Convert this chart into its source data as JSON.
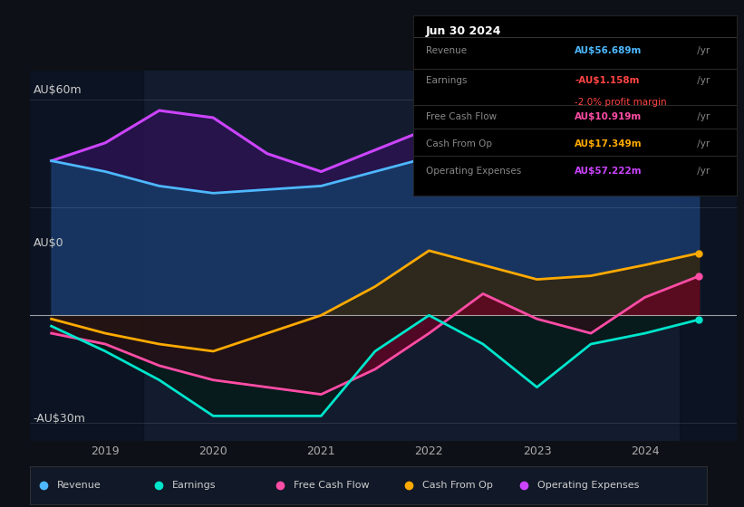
{
  "bg_color": "#0d1117",
  "plot_bg": "#131c2e",
  "ylim": [
    -35,
    68
  ],
  "xlim": [
    2018.3,
    2024.85
  ],
  "xticks": [
    2019,
    2020,
    2021,
    2022,
    2023,
    2024
  ],
  "series": {
    "Revenue": {
      "color": "#4db8ff",
      "fill_color": "#1a3a6b",
      "lw": 2.0,
      "x": [
        2018.5,
        2019.0,
        2019.5,
        2020.0,
        2020.5,
        2021.0,
        2021.5,
        2022.0,
        2022.5,
        2023.0,
        2023.5,
        2024.0,
        2024.5
      ],
      "y": [
        43,
        40,
        36,
        34,
        35,
        36,
        40,
        44,
        48,
        51,
        53,
        54,
        56.7
      ]
    },
    "Earnings": {
      "color": "#00e5cc",
      "lw": 2.0,
      "x": [
        2018.5,
        2019.0,
        2019.5,
        2020.0,
        2020.5,
        2021.0,
        2021.5,
        2022.0,
        2022.5,
        2023.0,
        2023.5,
        2024.0,
        2024.5
      ],
      "y": [
        -3,
        -10,
        -18,
        -28,
        -28,
        -28,
        -10,
        0,
        -8,
        -20,
        -8,
        -5,
        -1.2
      ]
    },
    "FreeCashFlow": {
      "color": "#ff4da6",
      "lw": 2.0,
      "x": [
        2018.5,
        2019.0,
        2019.5,
        2020.0,
        2020.5,
        2021.0,
        2021.5,
        2022.0,
        2022.5,
        2023.0,
        2023.5,
        2024.0,
        2024.5
      ],
      "y": [
        -5,
        -8,
        -14,
        -18,
        -20,
        -22,
        -15,
        -5,
        6,
        -1,
        -5,
        5,
        10.9
      ]
    },
    "CashFromOp": {
      "color": "#ffaa00",
      "lw": 2.0,
      "x": [
        2018.5,
        2019.0,
        2019.5,
        2020.0,
        2020.5,
        2021.0,
        2021.5,
        2022.0,
        2022.5,
        2023.0,
        2023.5,
        2024.0,
        2024.5
      ],
      "y": [
        -1,
        -5,
        -8,
        -10,
        -5,
        0,
        8,
        18,
        14,
        10,
        11,
        14,
        17.3
      ]
    },
    "OperatingExpenses": {
      "color": "#cc44ff",
      "lw": 2.2,
      "x": [
        2018.5,
        2019.0,
        2019.5,
        2020.0,
        2020.5,
        2021.0,
        2021.5,
        2022.0,
        2022.5,
        2023.0,
        2023.5,
        2024.0,
        2024.5
      ],
      "y": [
        43,
        48,
        57,
        55,
        45,
        40,
        46,
        52,
        57,
        62,
        56,
        54,
        57.2
      ]
    }
  },
  "info_box": {
    "date": "Jun 30 2024",
    "rows": [
      {
        "label": "Revenue",
        "value": "AU$56.689m",
        "value_color": "#4db8ff",
        "suffix": " /yr",
        "extra": null,
        "extra_color": null
      },
      {
        "label": "Earnings",
        "value": "-AU$1.158m",
        "value_color": "#ff4444",
        "suffix": " /yr",
        "extra": "-2.0% profit margin",
        "extra_color": "#ff4444"
      },
      {
        "label": "Free Cash Flow",
        "value": "AU$10.919m",
        "value_color": "#ff4da6",
        "suffix": " /yr",
        "extra": null,
        "extra_color": null
      },
      {
        "label": "Cash From Op",
        "value": "AU$17.349m",
        "value_color": "#ffaa00",
        "suffix": " /yr",
        "extra": null,
        "extra_color": null
      },
      {
        "label": "Operating Expenses",
        "value": "AU$57.222m",
        "value_color": "#cc44ff",
        "suffix": " /yr",
        "extra": null,
        "extra_color": null
      }
    ]
  },
  "legend": [
    {
      "label": "Revenue",
      "color": "#4db8ff"
    },
    {
      "label": "Earnings",
      "color": "#00e5cc"
    },
    {
      "label": "Free Cash Flow",
      "color": "#ff4da6"
    },
    {
      "label": "Cash From Op",
      "color": "#ffaa00"
    },
    {
      "label": "Operating Expenses",
      "color": "#cc44ff"
    }
  ]
}
